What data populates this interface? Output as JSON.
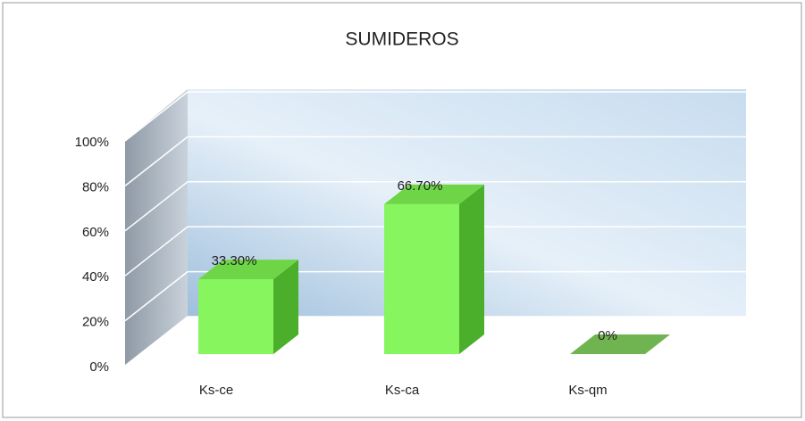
{
  "chart_data": {
    "type": "bar3d",
    "title": "SUMIDEROS",
    "categories": [
      "Ks-ce",
      "Ks-ca",
      "Ks-qm"
    ],
    "values": [
      33.3,
      66.7,
      0
    ],
    "value_labels": [
      "33.30%",
      "66.70%",
      "0%"
    ],
    "color": "#86f55e",
    "ylim": [
      0,
      100
    ],
    "yticks": [
      {
        "value": 0,
        "label": "0%"
      },
      {
        "value": 20,
        "label": "20%"
      },
      {
        "value": 40,
        "label": "40%"
      },
      {
        "value": 60,
        "label": "60%"
      },
      {
        "value": 80,
        "label": "80%"
      },
      {
        "value": 100,
        "label": "100%"
      }
    ],
    "grid": true
  }
}
